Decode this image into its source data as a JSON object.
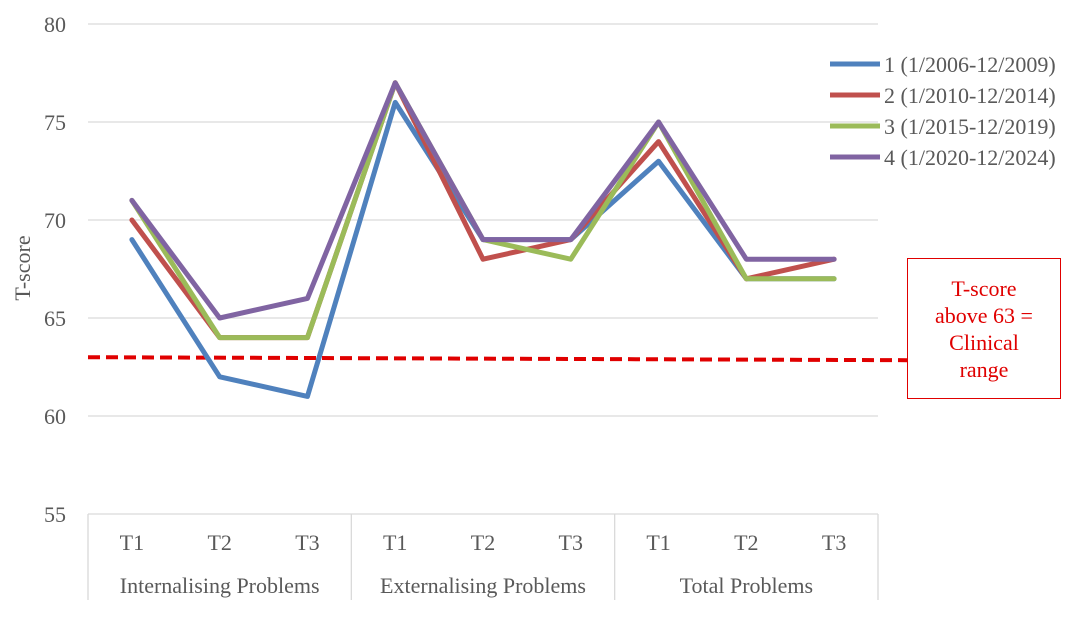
{
  "chart_data": {
    "type": "line",
    "ylabel": "T-score",
    "ylim": [
      55,
      80
    ],
    "yticks": [
      55,
      60,
      65,
      70,
      75,
      80
    ],
    "grid": true,
    "legend_position": "top-right",
    "categories": [
      "T1",
      "T2",
      "T3",
      "T1",
      "T2",
      "T3",
      "T1",
      "T2",
      "T3"
    ],
    "groups": [
      {
        "label": "Internalising Problems",
        "span": 3
      },
      {
        "label": "Externalising Problems",
        "span": 3
      },
      {
        "label": "Total Problems",
        "span": 3
      }
    ],
    "series": [
      {
        "name": "1 (1/2006-12/2009)",
        "color": "#4f81bd",
        "values": [
          69,
          62,
          61,
          76,
          69,
          69,
          73,
          67,
          67
        ]
      },
      {
        "name": "2 (1/2010-12/2014)",
        "color": "#c0504d",
        "values": [
          70,
          64,
          64,
          77,
          68,
          69,
          74,
          67,
          68
        ]
      },
      {
        "name": "3 (1/2015-12/2019)",
        "color": "#9bbb59",
        "values": [
          71,
          64,
          64,
          77,
          69,
          68,
          75,
          67,
          67
        ]
      },
      {
        "name": "4 (1/2020-12/2024)",
        "color": "#8064a2",
        "values": [
          71,
          65,
          66,
          77,
          69,
          69,
          75,
          68,
          68
        ]
      }
    ],
    "reference_line": {
      "value": 63,
      "color": "#e00000",
      "style": "dashed"
    },
    "annotation": {
      "lines": [
        "T-score",
        "above 63 =",
        "Clinical",
        "range"
      ],
      "color": "#e00000"
    }
  }
}
